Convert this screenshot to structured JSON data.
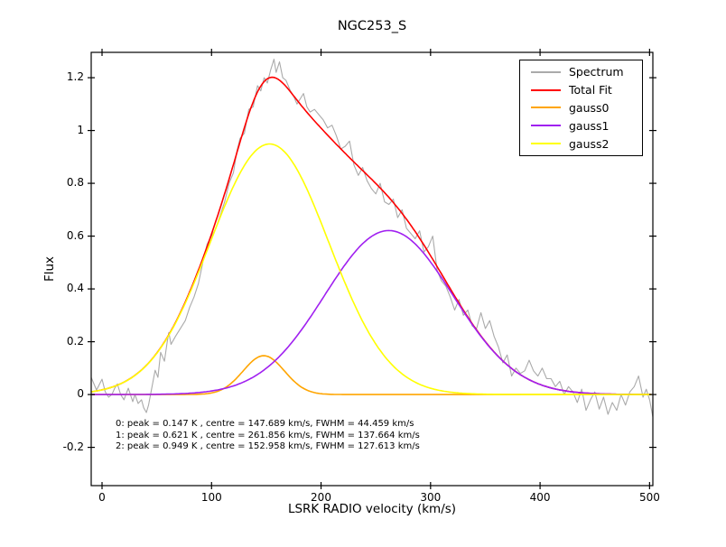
{
  "window": {
    "background": "#ffffff"
  },
  "chart_data": {
    "type": "line",
    "title": "NGC253_S",
    "xlabel": "LSRK RADIO velocity (km/s)",
    "ylabel": "Flux",
    "xlim": [
      -9.9,
      503
    ],
    "ylim": [
      -0.345,
      1.296
    ],
    "grid": false,
    "xticks": {
      "values": [
        0,
        100,
        200,
        300,
        400,
        500
      ],
      "labels": [
        "0",
        "100",
        "200",
        "300",
        "400",
        "500"
      ]
    },
    "yticks": {
      "values": [
        -0.2,
        0,
        0.2,
        0.4,
        0.6,
        0.8,
        1.0,
        1.2
      ],
      "labels": [
        "-0.2",
        "0",
        "0.2",
        "0.4",
        "0.6",
        "0.8",
        "1",
        "1.2"
      ]
    },
    "legend": {
      "position": "upper right",
      "entries": [
        {
          "label": "Spectrum",
          "color": "#aaaaaa"
        },
        {
          "label": "Total Fit",
          "color": "#ff0000"
        },
        {
          "label": "gauss0",
          "color": "#ffa500"
        },
        {
          "label": "gauss1",
          "color": "#a020f0"
        },
        {
          "label": "gauss2",
          "color": "#ffff00"
        }
      ]
    },
    "gaussians": [
      {
        "name": "gauss0",
        "color": "#ffa500",
        "peak": 0.147,
        "peak_unit": "K",
        "centre": 147.689,
        "fwhm": 44.459,
        "unit": "km/s"
      },
      {
        "name": "gauss1",
        "color": "#a020f0",
        "peak": 0.621,
        "peak_unit": "K",
        "centre": 261.856,
        "fwhm": 137.664,
        "unit": "km/s"
      },
      {
        "name": "gauss2",
        "color": "#ffff00",
        "peak": 0.949,
        "peak_unit": "K",
        "centre": 152.958,
        "fwhm": 127.613,
        "unit": "km/s"
      }
    ],
    "total_fit": {
      "label": "Total Fit",
      "color": "#ff0000",
      "definition": "sum of gauss0 + gauss1 + gauss2"
    },
    "annotation_lines": [
      "0: peak = 0.147 K , centre = 147.689 km/s, FWHM = 44.459 km/s",
      "1: peak = 0.621 K , centre = 261.856 km/s, FWHM = 137.664 km/s",
      "2: peak = 0.949 K , centre = 152.958 km/s, FWHM = 127.613 km/s"
    ],
    "spectrum": {
      "label": "Spectrum",
      "color": "#aaaaaa",
      "points": [
        [
          -9.9,
          0.065
        ],
        [
          -5,
          0.017
        ],
        [
          0,
          0.058
        ],
        [
          3,
          0.01
        ],
        [
          6,
          -0.01
        ],
        [
          9,
          0.0
        ],
        [
          11.5,
          0.024
        ],
        [
          14,
          0.04
        ],
        [
          17,
          0.0
        ],
        [
          20,
          -0.02
        ],
        [
          24,
          0.024
        ],
        [
          28,
          -0.027
        ],
        [
          30,
          0.0
        ],
        [
          33,
          -0.034
        ],
        [
          36,
          -0.02
        ],
        [
          38,
          -0.05
        ],
        [
          40.5,
          -0.068
        ],
        [
          42.5,
          -0.04
        ],
        [
          44.5,
          0.005
        ],
        [
          48.5,
          0.092
        ],
        [
          51,
          0.065
        ],
        [
          53.5,
          0.16
        ],
        [
          57,
          0.126
        ],
        [
          59.5,
          0.2
        ],
        [
          61,
          0.235
        ],
        [
          63,
          0.19
        ],
        [
          67,
          0.22
        ],
        [
          72,
          0.253
        ],
        [
          76,
          0.28
        ],
        [
          80,
          0.33
        ],
        [
          84,
          0.37
        ],
        [
          88,
          0.42
        ],
        [
          92,
          0.5
        ],
        [
          96,
          0.57
        ],
        [
          100,
          0.6
        ],
        [
          104,
          0.63
        ],
        [
          108,
          0.68
        ],
        [
          112,
          0.73
        ],
        [
          116,
          0.8
        ],
        [
          120,
          0.84
        ],
        [
          123,
          0.92
        ],
        [
          126,
          0.97
        ],
        [
          130,
          0.99
        ],
        [
          134,
          1.08
        ],
        [
          138,
          1.09
        ],
        [
          142,
          1.17
        ],
        [
          145,
          1.15
        ],
        [
          148,
          1.2
        ],
        [
          151,
          1.18
        ],
        [
          154,
          1.23
        ],
        [
          157,
          1.27
        ],
        [
          159,
          1.22
        ],
        [
          162,
          1.26
        ],
        [
          165,
          1.2
        ],
        [
          168,
          1.19
        ],
        [
          172,
          1.15
        ],
        [
          175,
          1.13
        ],
        [
          178,
          1.1
        ],
        [
          181,
          1.12
        ],
        [
          184,
          1.14
        ],
        [
          187,
          1.09
        ],
        [
          190,
          1.07
        ],
        [
          194,
          1.08
        ],
        [
          198,
          1.06
        ],
        [
          202,
          1.04
        ],
        [
          206,
          1.01
        ],
        [
          210,
          1.02
        ],
        [
          214,
          0.98
        ],
        [
          218,
          0.93
        ],
        [
          222,
          0.94
        ],
        [
          226,
          0.96
        ],
        [
          230,
          0.87
        ],
        [
          234,
          0.83
        ],
        [
          238,
          0.86
        ],
        [
          242,
          0.81
        ],
        [
          246,
          0.78
        ],
        [
          250,
          0.76
        ],
        [
          254,
          0.8
        ],
        [
          258,
          0.73
        ],
        [
          262,
          0.72
        ],
        [
          266,
          0.74
        ],
        [
          270,
          0.67
        ],
        [
          274,
          0.7
        ],
        [
          278,
          0.63
        ],
        [
          282,
          0.61
        ],
        [
          286,
          0.59
        ],
        [
          290,
          0.62
        ],
        [
          294,
          0.54
        ],
        [
          298,
          0.56
        ],
        [
          302,
          0.6
        ],
        [
          306,
          0.47
        ],
        [
          310,
          0.43
        ],
        [
          314,
          0.41
        ],
        [
          318,
          0.37
        ],
        [
          322,
          0.32
        ],
        [
          326,
          0.36
        ],
        [
          330,
          0.3
        ],
        [
          334,
          0.32
        ],
        [
          338,
          0.26
        ],
        [
          342,
          0.25
        ],
        [
          346,
          0.31
        ],
        [
          350,
          0.25
        ],
        [
          354,
          0.28
        ],
        [
          358,
          0.22
        ],
        [
          362,
          0.18
        ],
        [
          366,
          0.12
        ],
        [
          370,
          0.15
        ],
        [
          374,
          0.07
        ],
        [
          378,
          0.1
        ],
        [
          382,
          0.08
        ],
        [
          386,
          0.09
        ],
        [
          390,
          0.13
        ],
        [
          394,
          0.09
        ],
        [
          398,
          0.07
        ],
        [
          402,
          0.1
        ],
        [
          406,
          0.06
        ],
        [
          410,
          0.06
        ],
        [
          414,
          0.03
        ],
        [
          418,
          0.05
        ],
        [
          422,
          0.0
        ],
        [
          426,
          0.03
        ],
        [
          430,
          0.01
        ],
        [
          434,
          -0.03
        ],
        [
          438,
          0.02
        ],
        [
          442,
          -0.06
        ],
        [
          446,
          -0.02
        ],
        [
          450,
          0.01
        ],
        [
          454,
          -0.055
        ],
        [
          458,
          -0.01
        ],
        [
          462,
          -0.075
        ],
        [
          466,
          -0.03
        ],
        [
          470,
          -0.06
        ],
        [
          474,
          0.0
        ],
        [
          478,
          -0.04
        ],
        [
          482,
          0.01
        ],
        [
          486,
          0.03
        ],
        [
          490,
          0.07
        ],
        [
          494,
          -0.01
        ],
        [
          497,
          0.02
        ],
        [
          500,
          -0.02
        ],
        [
          503,
          -0.085
        ]
      ]
    },
    "axis_color": "#000000",
    "tick_style": "inout"
  }
}
